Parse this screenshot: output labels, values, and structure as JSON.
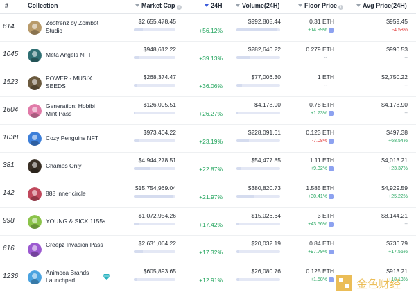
{
  "header": {
    "rank": "#",
    "collection": "Collection",
    "market_cap": "Market Cap",
    "change_24h": "24H",
    "volume": "Volume(24H)",
    "floor": "Floor Price",
    "avg": "Avg Price(24H)"
  },
  "rows": [
    {
      "rank": "614",
      "name": "Zoofrenz by Zombot Studio",
      "market_cap": "$2,655,478.45",
      "change": "+56.12%",
      "volume": "$992,805.44",
      "floor": "0.31 ETH",
      "floor_change": "+14.99%",
      "avg": "$959.45",
      "avg_change": "-4.58%",
      "avatar_color": "#b89a6a"
    },
    {
      "rank": "1045",
      "name": "Meta Angels NFT",
      "market_cap": "$948,612.22",
      "change": "+39.13%",
      "volume": "$282,640.22",
      "floor": "0.279 ETH",
      "floor_change": "--",
      "avg": "$990.53",
      "avg_change": "--",
      "avatar_color": "#2f6f73"
    },
    {
      "rank": "1523",
      "name": "POWER - MUSIX SEEDS",
      "market_cap": "$268,374.47",
      "change": "+36.06%",
      "volume": "$77,006.30",
      "floor": "1 ETH",
      "floor_change": "--",
      "avg": "$2,750.22",
      "avg_change": "--",
      "avatar_color": "#6b5a3e"
    },
    {
      "rank": "1604",
      "name": "Generation: Hobibi Mint Pass",
      "market_cap": "$126,005.51",
      "change": "+26.27%",
      "volume": "$4,178.90",
      "floor": "0.78 ETH",
      "floor_change": "+1.73%",
      "avg": "$4,178.90",
      "avg_change": "--",
      "avatar_color": "#e07aa8"
    },
    {
      "rank": "1038",
      "name": "Cozy Penguins NFT",
      "market_cap": "$973,404.22",
      "change": "+23.19%",
      "volume": "$228,091.61",
      "floor": "0.123 ETH",
      "floor_change": "-7.08%",
      "avg": "$497.38",
      "avg_change": "+68.54%",
      "avatar_color": "#3d7fd9"
    },
    {
      "rank": "381",
      "name": "Champs Only",
      "market_cap": "$4,944,278.51",
      "change": "+22.87%",
      "volume": "$54,477.85",
      "floor": "1.11 ETH",
      "floor_change": "+9.32%",
      "avg": "$4,013.21",
      "avg_change": "+23.37%",
      "avatar_color": "#3a3026"
    },
    {
      "rank": "142",
      "name": "888 inner circle",
      "market_cap": "$15,754,969.04",
      "change": "+21.97%",
      "volume": "$380,820.73",
      "floor": "1.585 ETH",
      "floor_change": "+30.41%",
      "avg": "$4,929.59",
      "avg_change": "+25.22%",
      "avatar_color": "#c0485c"
    },
    {
      "rank": "998",
      "name": "YOUNG & SICK 1155s",
      "market_cap": "$1,072,954.26",
      "change": "+17.42%",
      "volume": "$15,026.64",
      "floor": "3 ETH",
      "floor_change": "+43.56%",
      "avg": "$8,144.21",
      "avg_change": "--",
      "avatar_color": "#8bc34a"
    },
    {
      "rank": "616",
      "name": "Creepz Invasion Pass",
      "market_cap": "$2,631,064.22",
      "change": "+17.32%",
      "volume": "$20,032.19",
      "floor": "0.84 ETH",
      "floor_change": "+97.79%",
      "avg": "$736.79",
      "avg_change": "+17.55%",
      "avatar_color": "#9b59d0"
    },
    {
      "rank": "1236",
      "name": "Animoca Brands Launchpad",
      "market_cap": "$605,893.65",
      "change": "+12.91%",
      "volume": "$26,080.76",
      "floor": "0.125 ETH",
      "floor_change": "+1.58%",
      "avg": "$913.21",
      "avg_change": "+18.13%",
      "avatar_color": "#4aa3e0"
    }
  ],
  "bars": {
    "market_cap_fill": [
      0.22,
      0.12,
      0.06,
      0.04,
      0.12,
      0.38,
      0.95,
      0.14,
      0.22,
      0.09
    ],
    "volume_fill": [
      0.92,
      0.32,
      0.12,
      0.03,
      0.28,
      0.09,
      0.42,
      0.05,
      0.06,
      0.06
    ]
  },
  "watermark": {
    "text": "金色财经"
  },
  "colors": {
    "positive": "#22a45d",
    "negative": "#e03131",
    "accent": "#3b5bdb"
  }
}
